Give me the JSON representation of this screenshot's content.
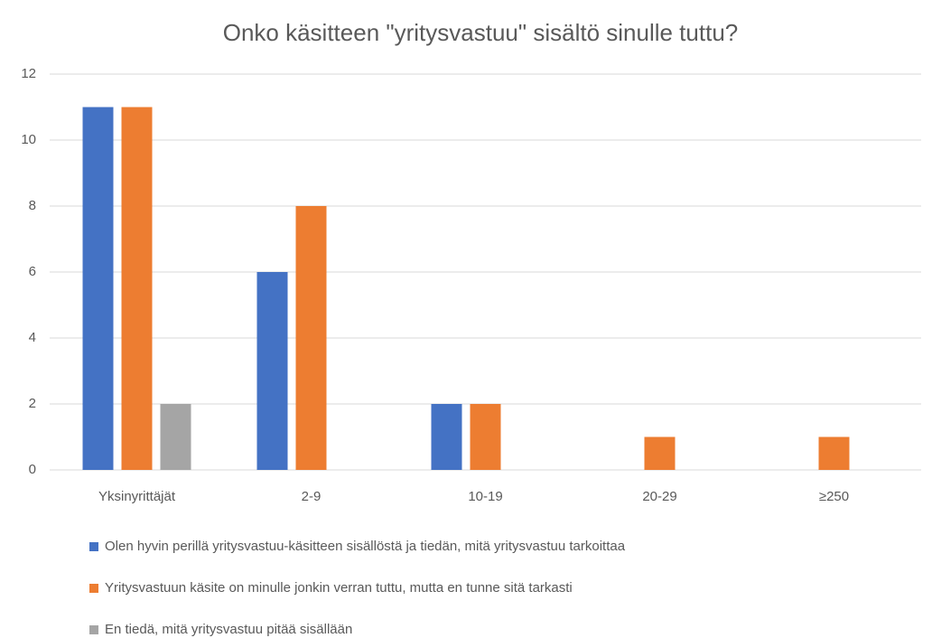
{
  "chart_data": {
    "type": "bar",
    "title": "Onko käsitteen \"yritysvastuu\" sisältö sinulle tuttu?",
    "categories": [
      "Yksinyrittäjät",
      "2-9",
      "10-19",
      "20-29",
      "≥250"
    ],
    "series": [
      {
        "name": "Olen hyvin perillä yritysvastuu-käsitteen sisällöstä ja tiedän, mitä yritysvastuu tarkoittaa",
        "color": "#4472c4",
        "values": [
          11,
          6,
          2,
          0,
          0
        ]
      },
      {
        "name": "Yritysvastuun käsite on minulle jonkin verran tuttu, mutta en tunne sitä tarkasti",
        "color": "#ed7d31",
        "values": [
          11,
          8,
          2,
          1,
          1
        ]
      },
      {
        "name": "En tiedä, mitä yritysvastuu pitää sisällään",
        "color": "#a5a5a5",
        "values": [
          2,
          0,
          0,
          0,
          0
        ]
      }
    ],
    "ylim": [
      0,
      12
    ],
    "yticks": [
      0,
      2,
      4,
      6,
      8,
      10,
      12
    ],
    "grid": true,
    "legend": "bottom"
  }
}
